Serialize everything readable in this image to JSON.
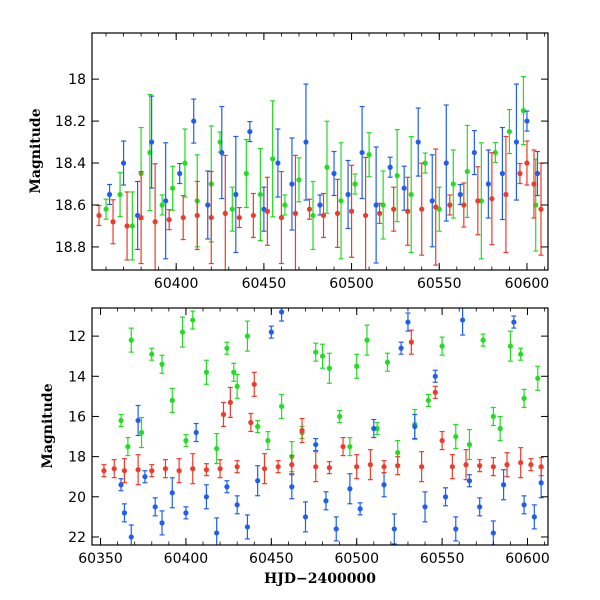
{
  "chart_data": [
    {
      "type": "scatter",
      "panel": "top",
      "xlabel": "",
      "ylabel": "Magnitude",
      "xlim": [
        60352,
        60612
      ],
      "ylim": [
        18.91,
        17.78
      ],
      "y_inverted": true,
      "x_ticks": [
        60400,
        60450,
        60500,
        60550,
        60600
      ],
      "y_ticks": [
        18,
        18.2,
        18.4,
        18.6,
        18.8
      ],
      "y_tick_labels": [
        "18",
        "18.2",
        "18.4",
        "18.6",
        "18.8"
      ],
      "x_tick_labels": [
        "60400",
        "60450",
        "60500",
        "60550",
        "60600"
      ],
      "grid": false,
      "series": [
        {
          "color": "#22dd22",
          "marker": "circle",
          "error_bars": true,
          "values": [
            [
              60360,
              18.62
            ],
            [
              60368,
              18.55
            ],
            [
              60375,
              18.7
            ],
            [
              60380,
              18.45
            ],
            [
              60385,
              18.35
            ],
            [
              60392,
              18.6
            ],
            [
              60398,
              18.52
            ],
            [
              60405,
              18.4
            ],
            [
              60412,
              18.58
            ],
            [
              60420,
              18.5
            ],
            [
              60425,
              18.3
            ],
            [
              60432,
              18.62
            ],
            [
              60440,
              18.45
            ],
            [
              60448,
              18.55
            ],
            [
              60455,
              18.38
            ],
            [
              60462,
              18.6
            ],
            [
              60470,
              18.48
            ],
            [
              60478,
              18.65
            ],
            [
              60486,
              18.42
            ],
            [
              60494,
              18.58
            ],
            [
              60502,
              18.5
            ],
            [
              60510,
              18.36
            ],
            [
              60518,
              18.6
            ],
            [
              60526,
              18.46
            ],
            [
              60534,
              18.55
            ],
            [
              60542,
              18.4
            ],
            [
              60550,
              18.62
            ],
            [
              60558,
              18.5
            ],
            [
              60566,
              18.44
            ],
            [
              60574,
              18.58
            ],
            [
              60582,
              18.35
            ],
            [
              60590,
              18.25
            ],
            [
              60598,
              18.15
            ],
            [
              60605,
              18.6
            ]
          ]
        },
        {
          "color": "#1f5ff0",
          "marker": "circle",
          "error_bars": true,
          "values": [
            [
              60362,
              18.55
            ],
            [
              60370,
              18.4
            ],
            [
              60378,
              18.65
            ],
            [
              60386,
              18.3
            ],
            [
              60394,
              18.58
            ],
            [
              60402,
              18.45
            ],
            [
              60410,
              18.2
            ],
            [
              60418,
              18.6
            ],
            [
              60426,
              18.35
            ],
            [
              60434,
              18.55
            ],
            [
              60442,
              18.25
            ],
            [
              60450,
              18.62
            ],
            [
              60458,
              18.4
            ],
            [
              60466,
              18.5
            ],
            [
              60474,
              18.3
            ],
            [
              60482,
              18.6
            ],
            [
              60490,
              18.45
            ],
            [
              60498,
              18.55
            ],
            [
              60506,
              18.35
            ],
            [
              60514,
              18.6
            ],
            [
              60522,
              18.42
            ],
            [
              60530,
              18.52
            ],
            [
              60538,
              18.3
            ],
            [
              60546,
              18.58
            ],
            [
              60554,
              18.4
            ],
            [
              60562,
              18.55
            ],
            [
              60570,
              18.35
            ],
            [
              60578,
              18.5
            ],
            [
              60586,
              18.45
            ],
            [
              60594,
              18.3
            ],
            [
              60600,
              18.2
            ],
            [
              60606,
              18.45
            ]
          ]
        },
        {
          "color": "#f03a2a",
          "marker": "circle",
          "error_bars": true,
          "values": [
            [
              60356,
              18.65
            ],
            [
              60364,
              18.68
            ],
            [
              60372,
              18.7
            ],
            [
              60380,
              18.66
            ],
            [
              60388,
              18.68
            ],
            [
              60396,
              18.67
            ],
            [
              60404,
              18.66
            ],
            [
              60412,
              18.65
            ],
            [
              60420,
              18.66
            ],
            [
              60428,
              18.64
            ],
            [
              60436,
              18.66
            ],
            [
              60444,
              18.65
            ],
            [
              60452,
              18.63
            ],
            [
              60460,
              18.66
            ],
            [
              60468,
              18.64
            ],
            [
              60476,
              18.62
            ],
            [
              60484,
              18.65
            ],
            [
              60492,
              18.64
            ],
            [
              60500,
              18.63
            ],
            [
              60508,
              18.65
            ],
            [
              60516,
              18.64
            ],
            [
              60524,
              18.62
            ],
            [
              60532,
              18.63
            ],
            [
              60540,
              18.62
            ],
            [
              60548,
              18.61
            ],
            [
              60556,
              18.6
            ],
            [
              60564,
              18.6
            ],
            [
              60572,
              18.58
            ],
            [
              60580,
              18.57
            ],
            [
              60588,
              18.55
            ],
            [
              60596,
              18.45
            ],
            [
              60600,
              18.4
            ],
            [
              60604,
              18.5
            ],
            [
              60608,
              18.62
            ]
          ]
        }
      ]
    },
    {
      "type": "scatter",
      "panel": "bottom",
      "xlabel": "HJD−2400000",
      "ylabel": "Magnitude",
      "xlim": [
        60345,
        60612
      ],
      "ylim": [
        22.4,
        10.6
      ],
      "y_inverted": true,
      "x_ticks": [
        60350,
        60400,
        60450,
        60500,
        60550,
        60600
      ],
      "x_tick_labels": [
        "60350",
        "60400",
        "60450",
        "60500",
        "60550",
        "60600"
      ],
      "y_ticks": [
        12,
        14,
        16,
        18,
        20,
        22
      ],
      "y_tick_labels": [
        "12",
        "14",
        "16",
        "18",
        "20",
        "22"
      ],
      "grid": false,
      "series": [
        {
          "color": "#22dd22",
          "marker": "circle",
          "error_bars": true,
          "values": [
            [
              60362,
              16.2
            ],
            [
              60366,
              17.5
            ],
            [
              60368,
              12.2
            ],
            [
              60374,
              16.8
            ],
            [
              60380,
              12.9
            ],
            [
              60386,
              13.4
            ],
            [
              60392,
              15.2
            ],
            [
              60398,
              11.8
            ],
            [
              60400,
              17.2
            ],
            [
              60404,
              11.2
            ],
            [
              60412,
              13.8
            ],
            [
              60418,
              17.6
            ],
            [
              60424,
              12.6
            ],
            [
              60428,
              13.8
            ],
            [
              60430,
              14.5
            ],
            [
              60436,
              12.0
            ],
            [
              60442,
              16.5
            ],
            [
              60448,
              17.2
            ],
            [
              60456,
              15.5
            ],
            [
              60462,
              18.0
            ],
            [
              60468,
              16.8
            ],
            [
              60476,
              12.8
            ],
            [
              60480,
              13.0
            ],
            [
              60484,
              13.6
            ],
            [
              60490,
              16.0
            ],
            [
              60496,
              17.5
            ],
            [
              60500,
              13.5
            ],
            [
              60506,
              12.2
            ],
            [
              60512,
              16.6
            ],
            [
              60518,
              13.3
            ],
            [
              60524,
              17.8
            ],
            [
              60534,
              16.4
            ],
            [
              60542,
              15.2
            ],
            [
              60550,
              12.5
            ],
            [
              60558,
              17.0
            ],
            [
              60566,
              17.4
            ],
            [
              60574,
              12.2
            ],
            [
              60580,
              16.0
            ],
            [
              60584,
              16.6
            ],
            [
              60590,
              12.5
            ],
            [
              60596,
              12.9
            ],
            [
              60598,
              15.1
            ],
            [
              60606,
              14.1
            ]
          ]
        },
        {
          "color": "#1f5ff0",
          "marker": "circle",
          "error_bars": true,
          "values": [
            [
              60362,
              19.4
            ],
            [
              60364,
              20.8
            ],
            [
              60368,
              22.0
            ],
            [
              60372,
              16.2
            ],
            [
              60376,
              19.0
            ],
            [
              60382,
              20.5
            ],
            [
              60386,
              21.3
            ],
            [
              60392,
              19.8
            ],
            [
              60400,
              20.8
            ],
            [
              60406,
              16.8
            ],
            [
              60412,
              20.0
            ],
            [
              60418,
              21.8
            ],
            [
              60424,
              19.5
            ],
            [
              60430,
              20.4
            ],
            [
              60436,
              21.5
            ],
            [
              60442,
              19.2
            ],
            [
              60450,
              11.8
            ],
            [
              60456,
              10.8
            ],
            [
              60462,
              19.5
            ],
            [
              60470,
              21.0
            ],
            [
              60476,
              17.4
            ],
            [
              60482,
              20.2
            ],
            [
              60488,
              21.6
            ],
            [
              60496,
              19.6
            ],
            [
              60502,
              20.6
            ],
            [
              60510,
              16.6
            ],
            [
              60516,
              19.4
            ],
            [
              60522,
              21.6
            ],
            [
              60526,
              12.6
            ],
            [
              60530,
              11.3
            ],
            [
              60534,
              16.5
            ],
            [
              60540,
              20.5
            ],
            [
              60546,
              14.0
            ],
            [
              60552,
              20.0
            ],
            [
              60558,
              21.6
            ],
            [
              60562,
              11.2
            ],
            [
              60566,
              19.2
            ],
            [
              60572,
              20.5
            ],
            [
              60580,
              21.8
            ],
            [
              60586,
              19.4
            ],
            [
              60592,
              11.3
            ],
            [
              60598,
              20.4
            ],
            [
              60604,
              21.0
            ],
            [
              60608,
              19.3
            ]
          ]
        },
        {
          "color": "#f03a2a",
          "marker": "circle",
          "error_bars": true,
          "values": [
            [
              60352,
              18.7
            ],
            [
              60358,
              18.6
            ],
            [
              60364,
              18.7
            ],
            [
              60372,
              18.65
            ],
            [
              60380,
              18.7
            ],
            [
              60388,
              18.6
            ],
            [
              60396,
              18.7
            ],
            [
              60404,
              18.6
            ],
            [
              60412,
              18.65
            ],
            [
              60420,
              18.6
            ],
            [
              60422,
              15.9
            ],
            [
              60426,
              15.3
            ],
            [
              60430,
              18.5
            ],
            [
              60438,
              16.3
            ],
            [
              60440,
              14.4
            ],
            [
              60446,
              18.6
            ],
            [
              60454,
              18.5
            ],
            [
              60462,
              18.4
            ],
            [
              60468,
              16.7
            ],
            [
              60476,
              18.5
            ],
            [
              60484,
              18.55
            ],
            [
              60492,
              17.5
            ],
            [
              60500,
              18.5
            ],
            [
              60508,
              18.4
            ],
            [
              60516,
              18.5
            ],
            [
              60524,
              18.45
            ],
            [
              60532,
              12.3
            ],
            [
              60538,
              18.5
            ],
            [
              60546,
              14.8
            ],
            [
              60550,
              17.2
            ],
            [
              60556,
              18.5
            ],
            [
              60564,
              18.4
            ],
            [
              60572,
              18.45
            ],
            [
              60580,
              18.5
            ],
            [
              60588,
              18.4
            ],
            [
              60596,
              18.3
            ],
            [
              60602,
              18.4
            ],
            [
              60608,
              18.5
            ]
          ]
        }
      ]
    }
  ]
}
